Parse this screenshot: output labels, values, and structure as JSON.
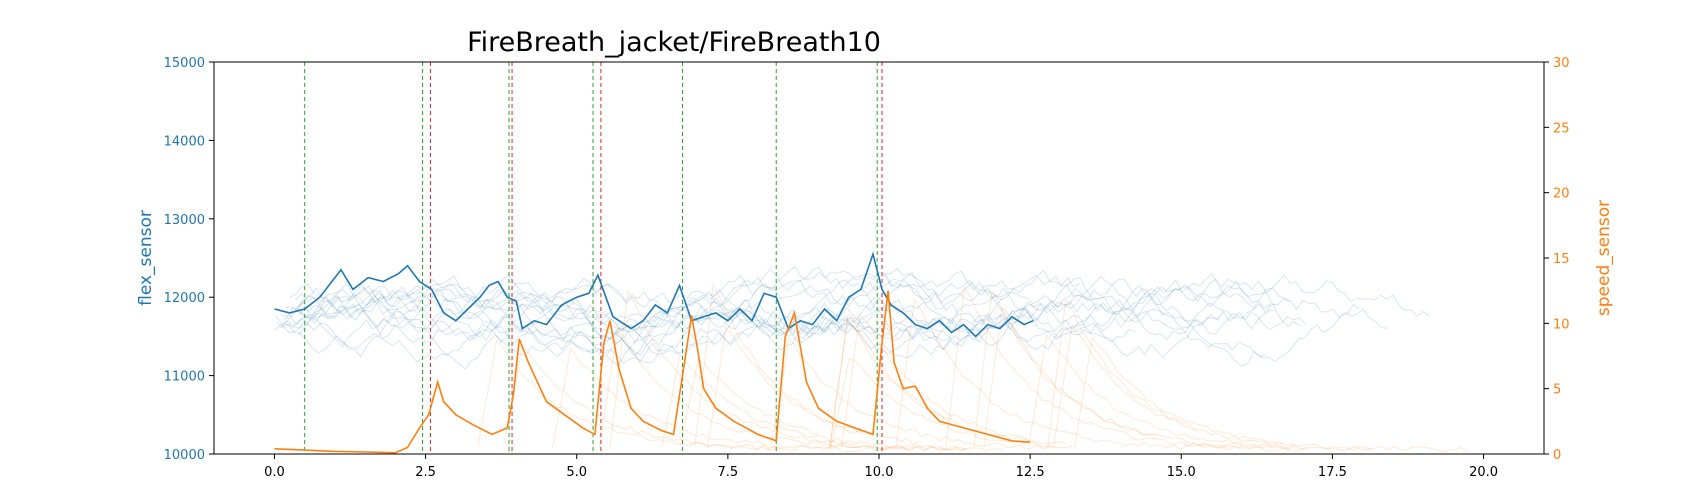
{
  "chart_data": {
    "type": "line",
    "title": "FireBreath_jacket/FireBreath10",
    "ylabel_left": "flex_sensor",
    "ylabel_right": "speed_sensor",
    "xlim": [
      -1,
      21
    ],
    "ylim_left": [
      10000,
      15000
    ],
    "ylim_right": [
      0,
      30
    ],
    "x_ticks": [
      "0.0",
      "2.5",
      "5.0",
      "7.5",
      "10.0",
      "12.5",
      "15.0",
      "17.5",
      "20.0"
    ],
    "y_left_ticks": [
      "10000",
      "11000",
      "12000",
      "13000",
      "14000",
      "15000"
    ],
    "y_right_ticks": [
      "0",
      "5",
      "10",
      "15",
      "20",
      "25",
      "30"
    ],
    "colors": {
      "flex": "#1f77b4",
      "speed": "#ff7f0e",
      "green_marker": "#2ca02c",
      "red_marker": "#d62728"
    },
    "vertical_markers": [
      {
        "x": 0.5,
        "color": "green"
      },
      {
        "x": 2.45,
        "color": "green"
      },
      {
        "x": 2.58,
        "color": "red"
      },
      {
        "x": 3.88,
        "color": "green"
      },
      {
        "x": 3.93,
        "color": "red"
      },
      {
        "x": 5.27,
        "color": "green"
      },
      {
        "x": 5.4,
        "color": "red"
      },
      {
        "x": 6.75,
        "color": "green"
      },
      {
        "x": 8.3,
        "color": "green"
      },
      {
        "x": 9.97,
        "color": "green"
      },
      {
        "x": 10.05,
        "color": "red"
      }
    ],
    "series": [
      {
        "axis": "left",
        "x": [
          0.0,
          0.25,
          0.5,
          0.75,
          0.9,
          1.1,
          1.3,
          1.55,
          1.8,
          2.05,
          2.2,
          2.4,
          2.6,
          2.8,
          3.0,
          3.2,
          3.4,
          3.55,
          3.7,
          3.85,
          4.0,
          4.1,
          4.3,
          4.5,
          4.75,
          5.0,
          5.2,
          5.35,
          5.6,
          5.9,
          6.1,
          6.3,
          6.5,
          6.7,
          6.9,
          7.1,
          7.3,
          7.5,
          7.7,
          7.9,
          8.1,
          8.3,
          8.5,
          8.7,
          8.9,
          9.1,
          9.3,
          9.5,
          9.7,
          9.9,
          10.05,
          10.2,
          10.4,
          10.6,
          10.8,
          11.0,
          11.2,
          11.4,
          11.6,
          11.8,
          12.0,
          12.2,
          12.4,
          12.55
        ],
        "y": [
          11850,
          11800,
          11850,
          12000,
          12150,
          12350,
          12100,
          12250,
          12200,
          12300,
          12400,
          12200,
          12100,
          11800,
          11700,
          11850,
          12000,
          12150,
          12200,
          12000,
          11950,
          11600,
          11700,
          11650,
          11900,
          12000,
          12050,
          12280,
          11750,
          11600,
          11700,
          11900,
          11800,
          12150,
          11700,
          11750,
          11800,
          11700,
          11850,
          11700,
          12050,
          12000,
          11600,
          11700,
          11650,
          11850,
          11700,
          12000,
          12100,
          12550,
          12100,
          11900,
          11800,
          11650,
          11600,
          11700,
          11550,
          11650,
          11500,
          11650,
          11600,
          11750,
          11650,
          11700
        ]
      },
      {
        "axis": "right",
        "x": [
          0.0,
          0.5,
          1.0,
          1.5,
          2.0,
          2.2,
          2.4,
          2.55,
          2.7,
          2.8,
          3.0,
          3.3,
          3.6,
          3.85,
          3.95,
          4.05,
          4.2,
          4.5,
          4.8,
          5.1,
          5.3,
          5.45,
          5.55,
          5.7,
          5.9,
          6.1,
          6.4,
          6.6,
          6.75,
          6.9,
          7.0,
          7.1,
          7.3,
          7.6,
          8.0,
          8.3,
          8.45,
          8.6,
          8.8,
          9.0,
          9.3,
          9.6,
          9.9,
          10.05,
          10.15,
          10.25,
          10.4,
          10.6,
          10.8,
          11.0,
          11.4,
          11.8,
          12.2,
          12.5
        ],
        "y": [
          0.4,
          0.3,
          0.2,
          0.15,
          0.1,
          0.5,
          2.0,
          3.0,
          5.5,
          4.0,
          3.0,
          2.2,
          1.5,
          2.0,
          4.5,
          8.8,
          7.0,
          4.0,
          3.0,
          2.0,
          1.5,
          8.5,
          10.2,
          6.5,
          3.5,
          2.5,
          1.8,
          1.5,
          6.0,
          10.6,
          8.0,
          5.0,
          3.5,
          2.5,
          1.5,
          1.0,
          9.0,
          10.8,
          5.5,
          3.5,
          2.5,
          2.0,
          1.5,
          8.5,
          12.5,
          7.0,
          5.0,
          5.2,
          3.5,
          2.5,
          2.0,
          1.5,
          1.0,
          0.9
        ]
      }
    ]
  }
}
